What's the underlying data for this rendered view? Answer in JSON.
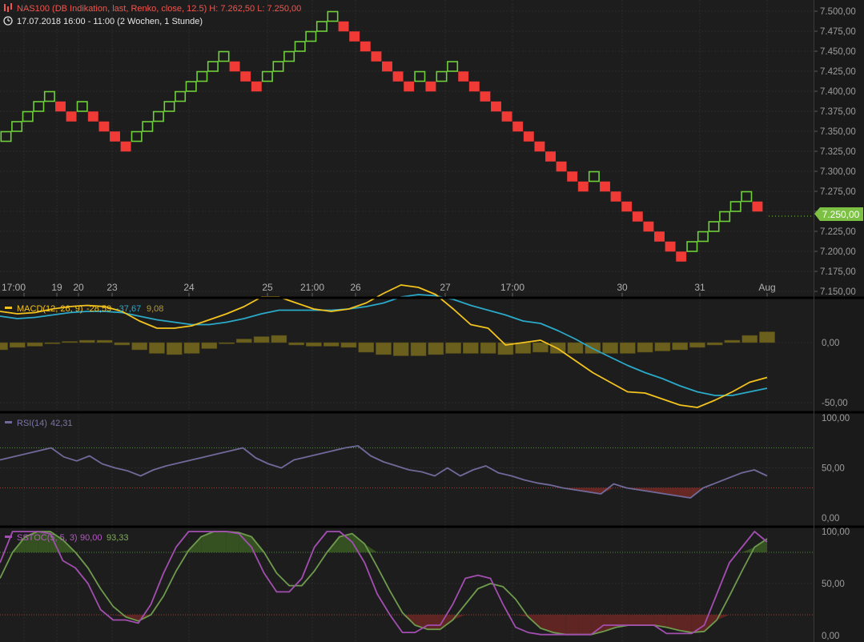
{
  "colors": {
    "up_box": "#6fd13a",
    "down_box": "#f03a36",
    "macd_line": "#f3c31e",
    "signal_line": "#2aa9c8",
    "histogram": "#6b5f1e",
    "rsi_line": "#6f6a9a",
    "rsi_fill": "#7a2b26",
    "sstoc_k": "#a24eb0",
    "sstoc_d": "#6e9a4e",
    "overbought_fill": "#3a5a23",
    "oversold_fill": "#6b2723",
    "last_price_tag": "#7cc143",
    "header_title": "#f2554e",
    "header_text": "#e6e6e6"
  },
  "header": {
    "title": "NAS100 (DB Indikation, last, Renko, close, 12.5)  H: 7.262,50  L: 7.250,00",
    "period": "17.07.2018 16:00 - 11:00   (2 Wochen, 1 Stunde)",
    "chart_icon": "bars-icon",
    "clock_icon": "clock-icon"
  },
  "price_pane": {
    "last_price_label": "7.250,00",
    "y_ticks": [
      "7.500,00",
      "7.475,00",
      "7.450,00",
      "7.425,00",
      "7.400,00",
      "7.375,00",
      "7.350,00",
      "7.325,00",
      "7.300,00",
      "7.275,00",
      "7.250,00",
      "7.225,00",
      "7.200,00",
      "7.175,00",
      "7.150,00"
    ],
    "x_ticks": [
      "17:00",
      "19",
      "20",
      "23",
      "24",
      "25",
      "21:00",
      "26",
      "27",
      "17:00",
      "30",
      "31",
      "Aug"
    ]
  },
  "macd_pane": {
    "legend_name": "MACD(12, 26, 9)",
    "macd_value": "-28,59",
    "signal_value": "-37,67",
    "hist_value": "9,08",
    "y_ticks": [
      "0,00",
      "-50,00"
    ]
  },
  "rsi_pane": {
    "legend_name": "RSI(14)",
    "rsi_value": "42,31",
    "y_ticks": [
      "100,00",
      "50,00",
      "0,00"
    ]
  },
  "sstoc_pane": {
    "legend_name": "SSTOC(5, 5, 3)",
    "k_value": "90,00",
    "d_value": "93,33",
    "y_ticks": [
      "100,00",
      "50,00",
      "0,00"
    ]
  },
  "chart_data": [
    {
      "type": "renko",
      "title": "NAS100 (DB Indikation, last, Renko, close, 12.5)",
      "box_size": 12.5,
      "ylim": [
        7150,
        7512.5
      ],
      "box_tops": [
        7350,
        7362.5,
        7375,
        7387.5,
        7400,
        7387.5,
        7375,
        7387.5,
        7375,
        7362.5,
        7350,
        7337.5,
        7350,
        7362.5,
        7375,
        7387.5,
        7400,
        7412.5,
        7425,
        7437.5,
        7450,
        7437.5,
        7425,
        7412.5,
        7425,
        7437.5,
        7450,
        7462.5,
        7475,
        7487.5,
        7500,
        7487.5,
        7475,
        7462.5,
        7450,
        7437.5,
        7425,
        7412.5,
        7425,
        7412.5,
        7425,
        7437.5,
        7425,
        7412.5,
        7400,
        7387.5,
        7375,
        7362.5,
        7350,
        7337.5,
        7325,
        7312.5,
        7300,
        7287.5,
        7300,
        7287.5,
        7275,
        7262.5,
        7250,
        7237.5,
        7225,
        7212.5,
        7200,
        7212.5,
        7225,
        7237.5,
        7250,
        7262.5,
        7275,
        7262.5
      ],
      "box_directions": [
        "up",
        "up",
        "up",
        "up",
        "up",
        "down",
        "down",
        "up",
        "down",
        "down",
        "down",
        "down",
        "up",
        "up",
        "up",
        "up",
        "up",
        "up",
        "up",
        "up",
        "up",
        "down",
        "down",
        "down",
        "up",
        "up",
        "up",
        "up",
        "up",
        "up",
        "up",
        "down",
        "down",
        "down",
        "down",
        "down",
        "down",
        "down",
        "up",
        "down",
        "up",
        "up",
        "down",
        "down",
        "down",
        "down",
        "down",
        "down",
        "down",
        "down",
        "down",
        "down",
        "down",
        "down",
        "up",
        "down",
        "down",
        "down",
        "down",
        "down",
        "down",
        "down",
        "down",
        "up",
        "up",
        "up",
        "up",
        "up",
        "up",
        "down"
      ],
      "y_ticks": [
        7500,
        7475,
        7450,
        7425,
        7400,
        7375,
        7350,
        7325,
        7300,
        7275,
        7250,
        7225,
        7200,
        7175,
        7150
      ],
      "last_price": 7250
    },
    {
      "type": "line",
      "title": "MACD(12, 26, 9)",
      "series": [
        {
          "name": "MACD",
          "values": [
            26,
            24,
            25,
            28,
            30,
            31,
            30,
            26,
            18,
            12,
            12,
            14,
            19,
            24,
            30,
            38,
            38,
            33,
            28,
            26,
            28,
            33,
            41,
            48,
            46,
            40,
            28,
            15,
            12,
            -2,
            0,
            2,
            -5,
            -15,
            -25,
            -33,
            -41,
            -42,
            -47,
            -52,
            -54,
            -48,
            -41,
            -33,
            -29
          ]
        },
        {
          "name": "Signal",
          "values": [
            22,
            20,
            21,
            23,
            25,
            26,
            26,
            25,
            22,
            19,
            17,
            15,
            15,
            17,
            20,
            24,
            27,
            27,
            27,
            27,
            28,
            30,
            33,
            38,
            40,
            39,
            36,
            31,
            27,
            23,
            18,
            16,
            10,
            3,
            -5,
            -12,
            -19,
            -25,
            -30,
            -36,
            -41,
            -44,
            -44,
            -41,
            -38
          ]
        },
        {
          "name": "Histogram",
          "values": [
            -6,
            -4,
            -3,
            -1,
            1,
            2,
            2,
            -2,
            -6,
            -9,
            -10,
            -9,
            -5,
            -1,
            3,
            5,
            6,
            -2,
            -3,
            -3,
            -4,
            -8,
            -10,
            -11,
            -11,
            -10,
            -9,
            -9,
            -9,
            -10,
            -9,
            -8,
            -9,
            -9,
            -9,
            -9,
            -9,
            -8,
            -7,
            -6,
            -4,
            -2,
            2,
            6,
            9
          ]
        }
      ],
      "ylim": [
        -55,
        40
      ],
      "y_ticks": [
        0,
        -50
      ]
    },
    {
      "type": "line",
      "title": "RSI(14)",
      "series": [
        {
          "name": "RSI",
          "values": [
            58,
            61,
            64,
            67,
            70,
            61,
            57,
            62,
            54,
            50,
            47,
            42,
            48,
            52,
            55,
            58,
            61,
            64,
            67,
            70,
            60,
            54,
            50,
            58,
            61,
            64,
            67,
            70,
            72,
            62,
            56,
            52,
            48,
            46,
            42,
            50,
            42,
            48,
            52,
            45,
            42,
            38,
            35,
            33,
            30,
            28,
            26,
            24,
            34,
            30,
            28,
            26,
            24,
            22,
            20,
            30,
            35,
            40,
            45,
            48,
            42
          ]
        }
      ],
      "ylim": [
        0,
        100
      ],
      "y_ticks": [
        100,
        50,
        0
      ],
      "levels": [
        70,
        30
      ]
    },
    {
      "type": "line",
      "title": "SSTOC(5, 5, 3)",
      "series": [
        {
          "name": "%K",
          "values": [
            70,
            100,
            100,
            100,
            98,
            72,
            65,
            50,
            25,
            15,
            15,
            12,
            30,
            60,
            85,
            100,
            100,
            100,
            100,
            98,
            85,
            60,
            42,
            42,
            55,
            85,
            100,
            100,
            90,
            70,
            40,
            20,
            3,
            3,
            10,
            10,
            30,
            55,
            58,
            55,
            30,
            8,
            3,
            1,
            1,
            1,
            1,
            1,
            10,
            10,
            10,
            10,
            10,
            2,
            2,
            2,
            10,
            40,
            70,
            85,
            100,
            90
          ]
        },
        {
          "name": "%D",
          "values": [
            55,
            80,
            95,
            100,
            100,
            92,
            80,
            65,
            45,
            28,
            18,
            14,
            20,
            38,
            62,
            82,
            95,
            100,
            100,
            99,
            95,
            80,
            60,
            48,
            48,
            62,
            80,
            95,
            98,
            88,
            66,
            43,
            22,
            10,
            6,
            6,
            15,
            30,
            45,
            50,
            47,
            35,
            18,
            7,
            3,
            1,
            1,
            1,
            4,
            8,
            10,
            10,
            10,
            8,
            5,
            3,
            4,
            15,
            38,
            62,
            85,
            93
          ]
        }
      ],
      "ylim": [
        0,
        100
      ],
      "y_ticks": [
        100,
        50,
        0
      ],
      "levels": [
        80,
        20
      ]
    }
  ]
}
